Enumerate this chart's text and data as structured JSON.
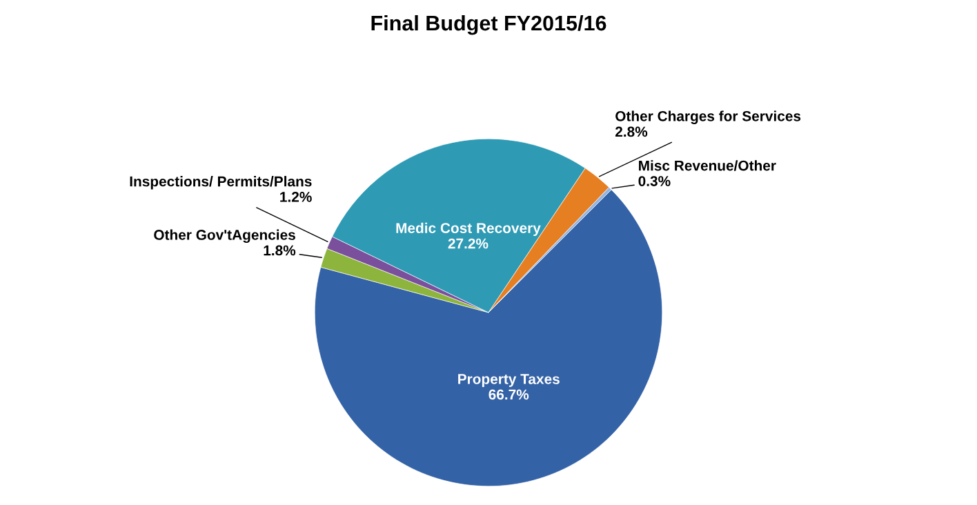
{
  "chart_data": {
    "type": "pie",
    "title": "Final Budget FY2015/16",
    "categories": [
      "Property Taxes",
      "Other Gov'tAgencies",
      "Inspections/ Permits/Plans",
      "Medic Cost Recovery",
      "Other Charges for Services",
      "Misc Revenue/Other"
    ],
    "values": [
      66.7,
      1.8,
      1.2,
      27.2,
      2.8,
      0.3
    ],
    "colors": [
      "#3462a6",
      "#8db43c",
      "#7a4f9c",
      "#2e9ab4",
      "#e67e22",
      "#94b4e0"
    ],
    "value_labels": [
      "66.7%",
      "1.8%",
      "1.2%",
      "27.2%",
      "2.8%",
      "0.3%"
    ],
    "legend": false
  }
}
